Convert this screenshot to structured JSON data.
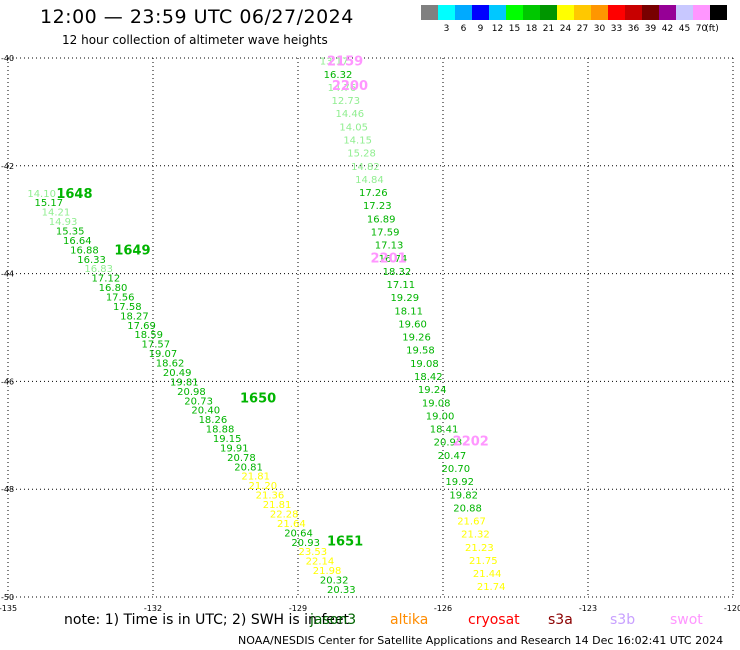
{
  "title": "12:00 — 23:59 UTC 06/27/2024",
  "subtitle": "12 hour collection of altimeter wave heights",
  "legend": {
    "colors": [
      "#808080",
      "#00ffff",
      "#00aaff",
      "#0000ff",
      "#00c8ff",
      "#00ff00",
      "#00c800",
      "#009600",
      "#ffff00",
      "#ffc800",
      "#ff9600",
      "#ff0000",
      "#c80000",
      "#780000",
      "#960096",
      "#c8c8ff",
      "#ff96ff",
      "#000000"
    ],
    "labels": [
      "3",
      "6",
      "9",
      "12",
      "15",
      "18",
      "21",
      "24",
      "27",
      "30",
      "33",
      "36",
      "39",
      "42",
      "45",
      "70"
    ],
    "unit": "(ft)"
  },
  "note": "note:  1) Time is in UTC; 2) SWH is in feet",
  "missions": [
    {
      "name": "jason3",
      "color": "#006400"
    },
    {
      "name": "altika",
      "color": "#ff8c00"
    },
    {
      "name": "cryosat",
      "color": "#ff0000"
    },
    {
      "name": "s3a",
      "color": "#8b0000"
    },
    {
      "name": "s3b",
      "color": "#c8a0ff"
    },
    {
      "name": "swot",
      "color": "#ff96ff"
    }
  ],
  "footer": "NOAA/NESDIS Center for Satellite Applications and Research   14 Dec 16:02:41 UTC 2024",
  "chart_data": {
    "type": "scatter",
    "xlabel": "",
    "ylabel": "",
    "xlim": [
      -135,
      -120
    ],
    "ylim": [
      -50,
      -40
    ],
    "xticks": [
      -135,
      -132,
      -129,
      -126,
      -123,
      -120
    ],
    "yticks": [
      -40,
      -42,
      -44,
      -46,
      -48,
      -50
    ],
    "xtick_labels": [
      "-135",
      "-132",
      "-129",
      "-126",
      "-123",
      "-120"
    ],
    "ytick_labels": [
      "-40",
      "-42",
      "-44",
      "-46",
      "-48",
      "-50"
    ],
    "grid": true,
    "series": [
      {
        "mission": "jason3",
        "start": {
          "lon": -134.6,
          "lat": -42.5
        },
        "end": {
          "lon": -128.4,
          "lat": -49.85
        },
        "values": [
          "14.10",
          "15.17",
          "14.21",
          "14.93",
          "15.35",
          "16.64",
          "16.88",
          "16.33",
          "16.83",
          "17.12",
          "16.80",
          "17.56",
          "17.58",
          "18.27",
          "17.69",
          "18.59",
          "17.57",
          "19.07",
          "18.62",
          "20.49",
          "19.81",
          "20.98",
          "20.73",
          "20.40",
          "18.26",
          "18.88",
          "19.15",
          "19.91",
          "20.78",
          "20.81",
          "21.81",
          "21.20",
          "21.36",
          "21.81",
          "22.28",
          "21.64",
          "20.64",
          "20.93",
          "23.53",
          "22.14",
          "21.98",
          "20.32",
          "20.33"
        ],
        "colors": [
          "#90ee90",
          "#00b400",
          "#90ee90",
          "#90ee90",
          "#00b400",
          "#00b400",
          "#00b400",
          "#00b400",
          "#90ee90",
          "#00b400",
          "#00b400",
          "#00b400",
          "#00b400",
          "#00b400",
          "#00b400",
          "#00b400",
          "#00b400",
          "#00b400",
          "#00b400",
          "#00b400",
          "#00b400",
          "#00b400",
          "#00b400",
          "#00b400",
          "#00b400",
          "#00b400",
          "#00b400",
          "#00b400",
          "#00b400",
          "#00b400",
          "#ffff00",
          "#ffff00",
          "#ffff00",
          "#ffff00",
          "#ffff00",
          "#ffff00",
          "#00b400",
          "#00b400",
          "#ffff00",
          "#ffff00",
          "#ffff00",
          "#00b400",
          "#00b400"
        ],
        "time_labels": [
          {
            "text": "1648",
            "lon": -134.0,
            "lat": -42.5,
            "color": "#00b400"
          },
          {
            "text": "1649",
            "lon": -132.8,
            "lat": -43.55,
            "color": "#00b400"
          },
          {
            "text": "1650",
            "lon": -130.2,
            "lat": -46.3,
            "color": "#00b400"
          },
          {
            "text": "1651",
            "lon": -128.4,
            "lat": -48.95,
            "color": "#00b400"
          }
        ]
      },
      {
        "mission": "swot",
        "start": {
          "lon": -128.55,
          "lat": -40.05
        },
        "end": {
          "lon": -125.3,
          "lat": -49.8
        },
        "values": [
          "13.17",
          "16.32",
          "14.76",
          "12.73",
          "14.46",
          "14.05",
          "14.15",
          "15.28",
          "14.82",
          "14.84",
          "17.26",
          "17.23",
          "16.89",
          "17.59",
          "17.13",
          "16.74",
          "18.32",
          "17.11",
          "19.29",
          "18.11",
          "19.60",
          "19.26",
          "19.58",
          "19.08",
          "18.42",
          "19.24",
          "19.08",
          "19.00",
          "18.41",
          "20.93",
          "20.47",
          "20.70",
          "19.92",
          "19.82",
          "20.88",
          "21.67",
          "21.32",
          "21.23",
          "21.75",
          "21.44",
          "21.74"
        ],
        "colors": [
          "#90ee90",
          "#00b400",
          "#90ee90",
          "#90ee90",
          "#90ee90",
          "#90ee90",
          "#90ee90",
          "#90ee90",
          "#90ee90",
          "#90ee90",
          "#00b400",
          "#00b400",
          "#00b400",
          "#00b400",
          "#00b400",
          "#00b400",
          "#00b400",
          "#00b400",
          "#00b400",
          "#00b400",
          "#00b400",
          "#00b400",
          "#00b400",
          "#00b400",
          "#00b400",
          "#00b400",
          "#00b400",
          "#00b400",
          "#00b400",
          "#00b400",
          "#00b400",
          "#00b400",
          "#00b400",
          "#00b400",
          "#00b400",
          "#ffff00",
          "#ffff00",
          "#ffff00",
          "#ffff00",
          "#ffff00",
          "#ffff00"
        ],
        "time_labels": [
          {
            "text": "2159",
            "lon": -128.4,
            "lat": -40.05,
            "color": "#ff96ff"
          },
          {
            "text": "2200",
            "lon": -128.3,
            "lat": -40.5,
            "color": "#ff96ff"
          },
          {
            "text": "2201",
            "lon": -127.5,
            "lat": -43.7,
            "color": "#ff96ff"
          },
          {
            "text": "2202",
            "lon": -125.8,
            "lat": -47.1,
            "color": "#ff96ff"
          }
        ]
      }
    ]
  }
}
